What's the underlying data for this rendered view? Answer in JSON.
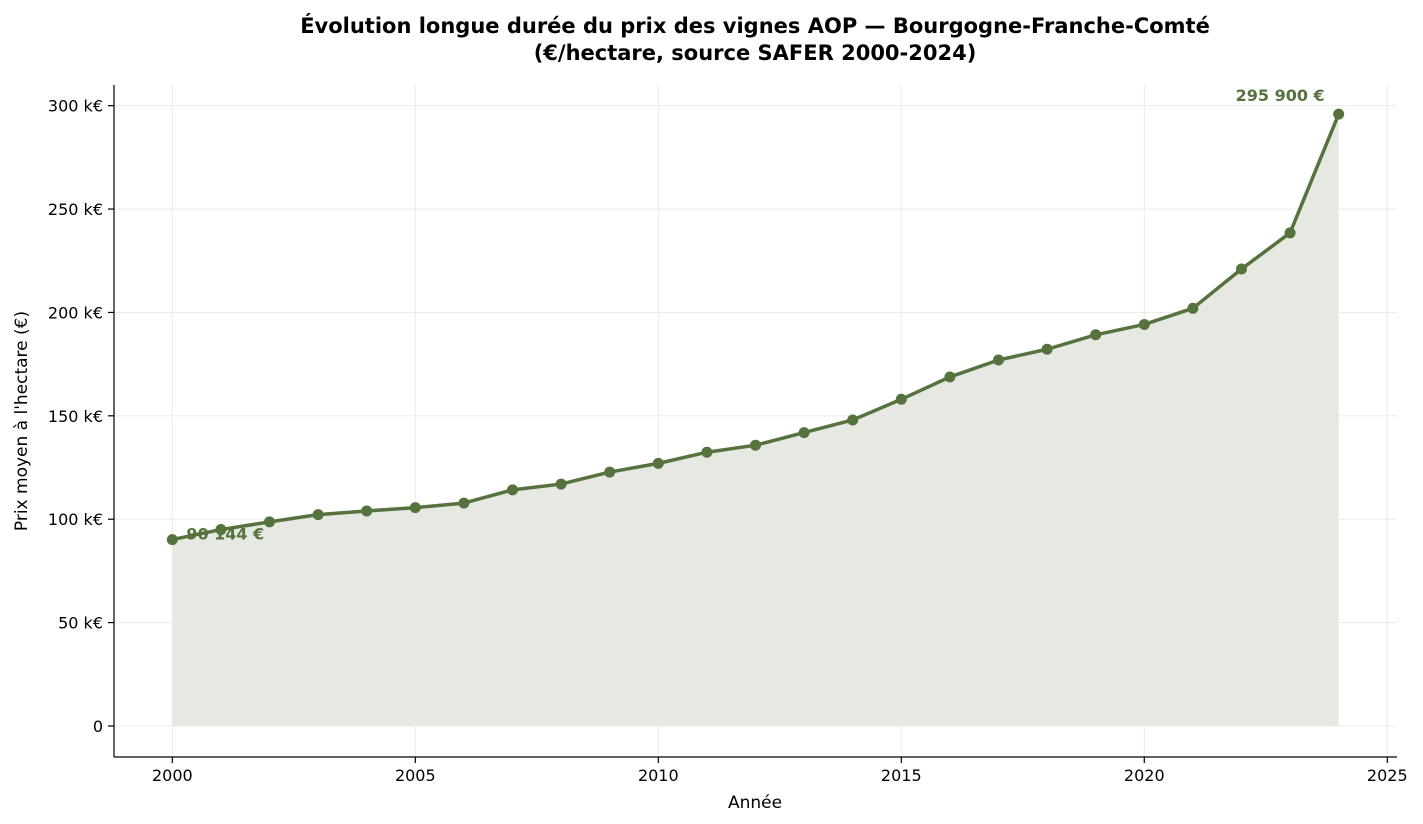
{
  "chart_data": {
    "type": "area",
    "title_line1": "Évolution longue durée du prix des vignes AOP — Bourgogne-Franche-Comté",
    "title_line2": "(€/hectare, source SAFER 2000-2024)",
    "xlabel": "Année",
    "ylabel": "Prix moyen à l'hectare (€)",
    "xlim": [
      1998.8,
      2025.2
    ],
    "ylim": [
      -15000,
      310000
    ],
    "x_ticks": [
      2000,
      2005,
      2010,
      2015,
      2020,
      2025
    ],
    "x_tick_labels": [
      "2000",
      "2005",
      "2010",
      "2015",
      "2020",
      "2025"
    ],
    "y_ticks": [
      0,
      50000,
      100000,
      150000,
      200000,
      250000,
      300000
    ],
    "y_tick_labels": [
      "0",
      "50 k€",
      "100 k€",
      "150 k€",
      "200 k€",
      "250 k€",
      "300 k€"
    ],
    "grid": true,
    "color": "#56733f",
    "fill_color": "#e6e9e1",
    "x": [
      2000,
      2001,
      2002,
      2003,
      2004,
      2005,
      2006,
      2007,
      2008,
      2009,
      2010,
      2011,
      2012,
      2013,
      2014,
      2015,
      2016,
      2017,
      2018,
      2019,
      2020,
      2021,
      2022,
      2023,
      2024
    ],
    "values": [
      90144,
      95000,
      98700,
      102200,
      104000,
      105600,
      107800,
      114200,
      117000,
      122800,
      127000,
      132400,
      135800,
      141900,
      148000,
      158000,
      168800,
      177000,
      182200,
      189200,
      194200,
      202000,
      221000,
      238500,
      295900
    ],
    "annotations": [
      {
        "label": "90 144 €",
        "x": 2000,
        "y": 90144,
        "anchor": "start"
      },
      {
        "label": "295 900 €",
        "x": 2024,
        "y": 295900,
        "anchor": "end"
      }
    ]
  }
}
